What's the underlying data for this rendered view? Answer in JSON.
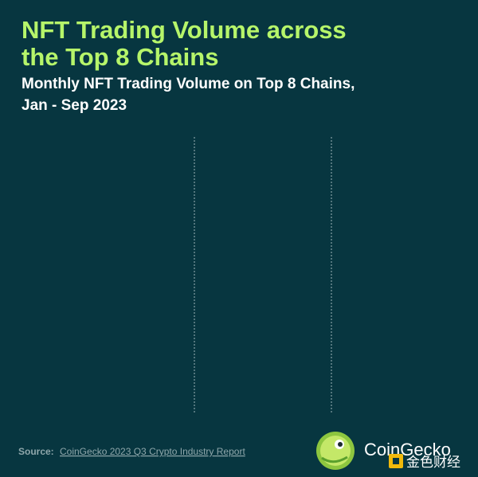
{
  "header": {
    "title_lines": [
      "NFT Trading Volume across",
      "the Top 8 Chains"
    ],
    "subtitle_lines": [
      "Monthly NFT Trading Volume on Top 8 Chains,",
      "Jan - Sep 2023"
    ]
  },
  "footer": {
    "source_label": "Source:",
    "source_link": "CoinGecko 2023 Q3 Crypto Industry Report",
    "brand": "CoinGecko",
    "watermark": "金色财经"
  }
}
